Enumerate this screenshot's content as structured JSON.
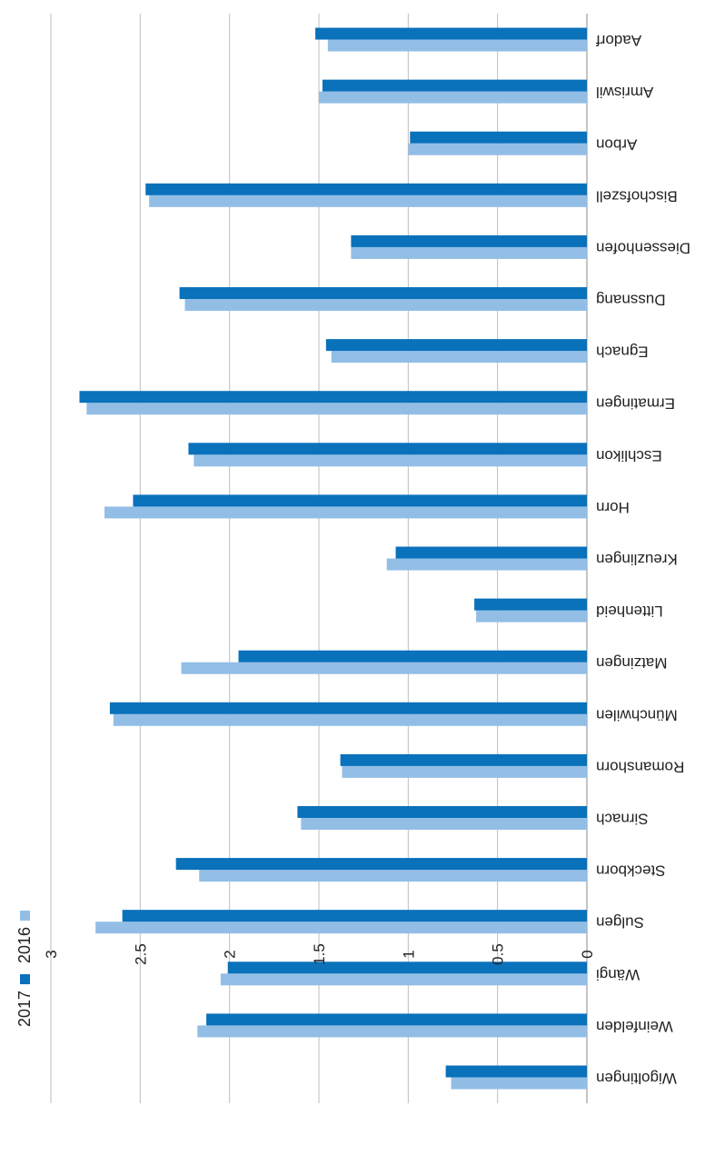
{
  "chart_data": {
    "type": "bar",
    "orientation": "horizontal",
    "rotated_180": true,
    "categories": [
      "Aadorf",
      "Amriswil",
      "Arbon",
      "Bischofszell",
      "Diessenhofen",
      "Dussnang",
      "Egnach",
      "Ermatingen",
      "Eschlikon",
      "Horn",
      "Kreuzlingen",
      "Littenheid",
      "Matzingen",
      "Münchwilen",
      "Romanshorn",
      "Sirnach",
      "Steckborn",
      "Sulgen",
      "Wängi",
      "Weinfelden",
      "Wigoltingen"
    ],
    "series": [
      {
        "name": "2016",
        "color": "#92bee6",
        "values": [
          1.45,
          1.5,
          1.0,
          2.45,
          1.32,
          2.25,
          1.43,
          2.8,
          2.2,
          2.7,
          1.12,
          0.62,
          2.27,
          2.65,
          1.37,
          1.6,
          2.17,
          2.75,
          2.05,
          2.18,
          0.76
        ]
      },
      {
        "name": "2017",
        "color": "#0a71bb",
        "values": [
          1.52,
          1.48,
          0.99,
          2.47,
          1.32,
          2.28,
          1.46,
          2.84,
          2.23,
          2.54,
          1.07,
          0.63,
          1.95,
          2.67,
          1.38,
          1.62,
          2.3,
          2.6,
          2.01,
          2.13,
          0.79
        ]
      }
    ],
    "xticks": [
      "0",
      "0.5",
      "1",
      "1.5",
      "2",
      "2.5",
      "3"
    ],
    "xlim": [
      0,
      3
    ],
    "grid": true,
    "legend": "bottom-left"
  }
}
